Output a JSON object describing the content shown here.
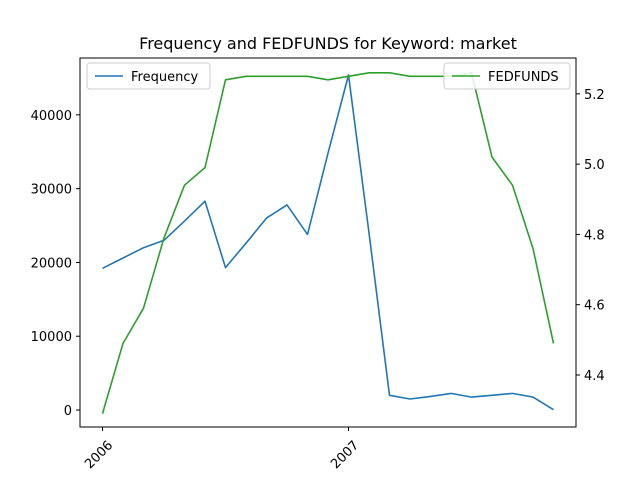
{
  "chart_data": {
    "type": "line",
    "title": "Frequency and FEDFUNDS for Keyword: market",
    "xlabel": "",
    "x_ticks": [
      "2006",
      "2007"
    ],
    "x_range": [
      "2006-01",
      "2007-11"
    ],
    "left_axis": {
      "ylabel": "",
      "ylim": [
        -2300,
        47700
      ],
      "ticks": [
        0,
        10000,
        20000,
        30000,
        40000
      ],
      "tick_labels": [
        "0",
        "10000",
        "20000",
        "30000",
        "40000"
      ]
    },
    "right_axis": {
      "ylabel": "",
      "ylim": [
        4.252,
        5.302
      ],
      "ticks": [
        4.4,
        4.6,
        4.8,
        5.0,
        5.2
      ],
      "tick_labels": [
        "4.4",
        "4.6",
        "4.8",
        "5.0",
        "5.2"
      ]
    },
    "series": [
      {
        "name": "Frequency",
        "axis": "left",
        "color": "#1f77b4",
        "x": [
          "2006-01",
          "2006-02",
          "2006-03",
          "2006-04",
          "2006-05",
          "2006-06",
          "2006-07",
          "2006-08",
          "2006-09",
          "2006-10",
          "2006-11",
          "2006-12",
          "2007-01",
          "2007-02",
          "2007-03",
          "2007-04",
          "2007-05",
          "2007-06",
          "2007-07",
          "2007-08",
          "2007-09",
          "2007-10",
          "2007-11"
        ],
        "values": [
          19200,
          20600,
          22000,
          23000,
          25600,
          28300,
          19300,
          22600,
          26000,
          27800,
          23800,
          34800,
          45400,
          24000,
          2000,
          1500,
          1850,
          2250,
          1750,
          2000,
          2250,
          1750,
          50
        ]
      },
      {
        "name": "FEDFUNDS",
        "axis": "right",
        "color": "#2ca02c",
        "x": [
          "2006-01",
          "2006-02",
          "2006-03",
          "2006-04",
          "2006-05",
          "2006-06",
          "2006-07",
          "2006-08",
          "2006-09",
          "2006-10",
          "2006-11",
          "2006-12",
          "2007-01",
          "2007-02",
          "2007-03",
          "2007-04",
          "2007-05",
          "2007-06",
          "2007-07",
          "2007-08",
          "2007-09",
          "2007-10",
          "2007-11"
        ],
        "values": [
          4.29,
          4.49,
          4.59,
          4.79,
          4.94,
          4.99,
          5.24,
          5.25,
          5.25,
          5.25,
          5.25,
          5.24,
          5.25,
          5.26,
          5.26,
          5.25,
          5.25,
          5.25,
          5.26,
          5.02,
          4.94,
          4.76,
          4.49
        ]
      }
    ],
    "legends": [
      {
        "placement": "upper-left",
        "entries": [
          "Frequency"
        ]
      },
      {
        "placement": "upper-right",
        "entries": [
          "FEDFUNDS"
        ]
      }
    ],
    "grid": false
  }
}
